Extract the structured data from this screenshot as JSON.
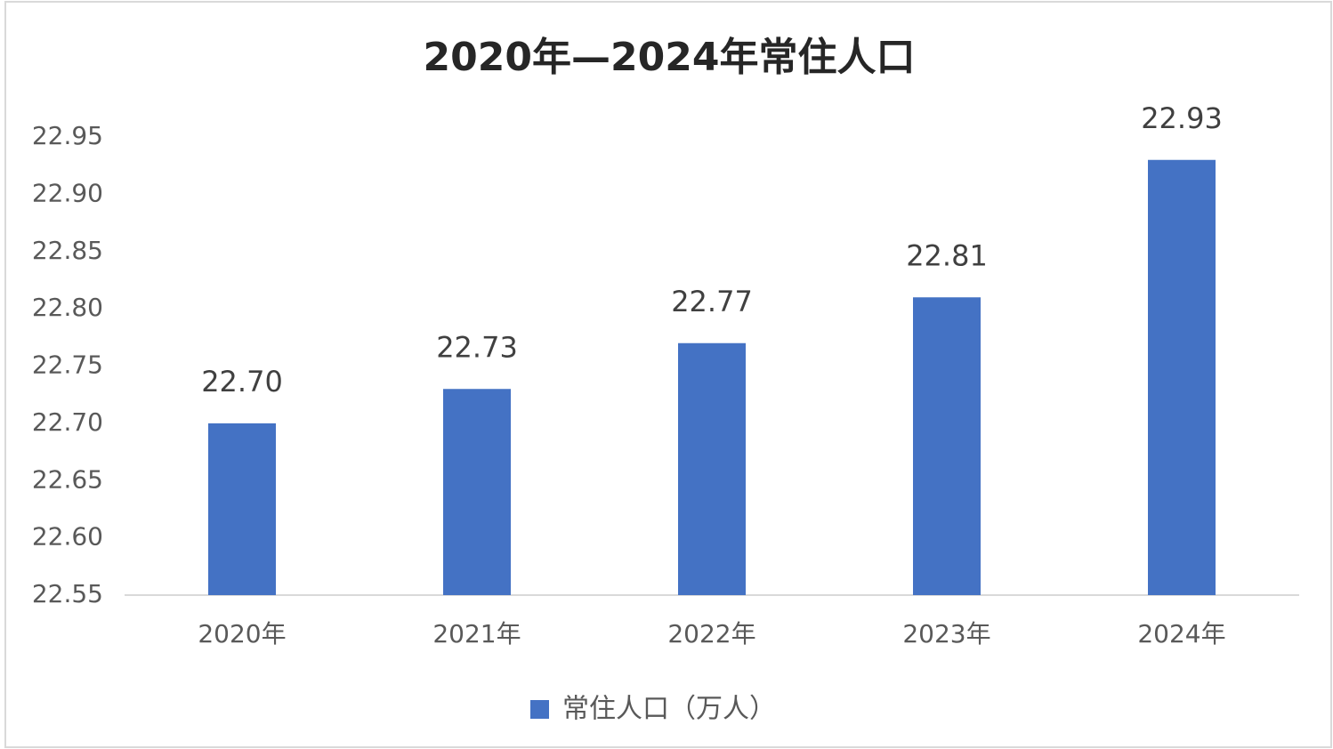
{
  "chart_data": {
    "type": "bar",
    "title": "2020年—2024年常住人口",
    "categories": [
      "2020年",
      "2021年",
      "2022年",
      "2023年",
      "2024年"
    ],
    "series": [
      {
        "name": "常住人口（万人）",
        "color": "#4472c4",
        "values": [
          22.7,
          22.73,
          22.77,
          22.81,
          22.93
        ],
        "value_labels": [
          "22.70",
          "22.73",
          "22.77",
          "22.81",
          "22.93"
        ]
      }
    ],
    "ylim": [
      22.55,
      22.95
    ],
    "yticks": [
      22.55,
      {
        "value": 22.6,
        "label": "22.60"
      },
      22.65,
      {
        "value": 22.7,
        "label": "22.70"
      },
      22.75,
      {
        "value": 22.8,
        "label": "22.80"
      },
      22.85,
      {
        "value": 22.9,
        "label": "22.90"
      },
      22.95
    ],
    "grid": false,
    "legend": "bottom"
  }
}
